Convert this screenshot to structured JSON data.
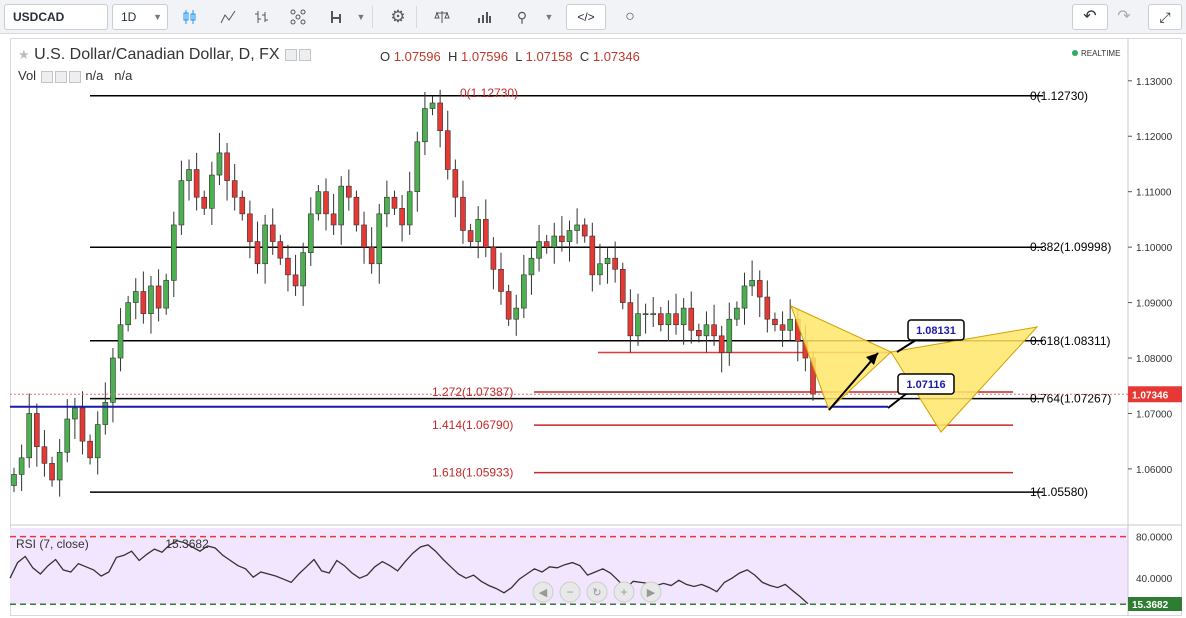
{
  "toolbar": {
    "symbol": "USDCAD",
    "interval": "1D"
  },
  "legend": {
    "title": "U.S. Dollar/Canadian Dollar, D, FX",
    "o_label": "O",
    "o": "1.07596",
    "h_label": "H",
    "h": "1.07596",
    "l_label": "L",
    "l": "1.07158",
    "c_label": "C",
    "c": "1.07346",
    "vol_label": "Vol",
    "vol_a": "n/a",
    "vol_b": "n/a",
    "realtime": "REALTIME"
  },
  "colors": {
    "up": "#4caf50",
    "down": "#e53935",
    "fib": "#000000",
    "ext": "#c62828",
    "blue_line": "#1a1aa6",
    "harmonic_fill": "#ffe66a",
    "rsi_bg": "#f2e6ff",
    "price_tag": "#e53935"
  },
  "chart_data": [
    {
      "type": "candlestick",
      "symbol": "USDCAD",
      "interval": "D",
      "y_axis": {
        "ticks": [
          "1.13000",
          "1.12000",
          "1.11000",
          "1.10000",
          "1.09000",
          "1.08000",
          "1.07000",
          "1.06000"
        ],
        "range": [
          1.0525,
          1.1335
        ]
      },
      "last_price": "1.07346",
      "price_path": [
        1.059,
        1.062,
        1.07,
        1.064,
        1.061,
        1.058,
        1.063,
        1.069,
        1.071,
        1.065,
        1.062,
        1.068,
        1.072,
        1.08,
        1.086,
        1.09,
        1.092,
        1.088,
        1.093,
        1.089,
        1.094,
        1.104,
        1.112,
        1.114,
        1.109,
        1.107,
        1.113,
        1.117,
        1.112,
        1.109,
        1.106,
        1.101,
        1.097,
        1.104,
        1.101,
        1.098,
        1.095,
        1.093,
        1.099,
        1.106,
        1.11,
        1.106,
        1.104,
        1.111,
        1.109,
        1.104,
        1.1,
        1.097,
        1.106,
        1.109,
        1.107,
        1.104,
        1.11,
        1.119,
        1.125,
        1.126,
        1.121,
        1.114,
        1.109,
        1.103,
        1.101,
        1.105,
        1.1,
        1.096,
        1.092,
        1.087,
        1.089,
        1.095,
        1.098,
        1.101,
        1.1,
        1.102,
        1.101,
        1.103,
        1.104,
        1.102,
        1.095,
        1.097,
        1.098,
        1.096,
        1.09,
        1.084,
        1.088,
        1.088,
        1.088,
        1.086,
        1.088,
        1.086,
        1.089,
        1.085,
        1.084,
        1.086,
        1.084,
        1.081,
        1.087,
        1.089,
        1.093,
        1.094,
        1.091,
        1.087,
        1.086,
        1.085,
        1.087,
        1.083,
        1.08,
        1.0735
      ],
      "fib_levels": [
        {
          "label": "0(1.12730)",
          "value": 1.1273
        },
        {
          "label": "0.382(1.09998)",
          "value": 1.09998
        },
        {
          "label": "0.618(1.08311)",
          "value": 1.08311
        },
        {
          "label": "0.764(1.07267)",
          "value": 1.07267
        },
        {
          "label": "1(1.05580)",
          "value": 1.0558
        }
      ],
      "fib_left_labels": [
        {
          "label": "0(1.12730)",
          "value": 1.1273
        }
      ],
      "extension_levels": [
        {
          "label": "1.272(1.07387)",
          "value": 1.07387
        },
        {
          "label": "1.414(1.06790)",
          "value": 1.0679
        },
        {
          "label": "1.618(1.05933)",
          "value": 1.05933
        }
      ],
      "annotations": [
        {
          "label": "1.08131",
          "value": 1.08131
        },
        {
          "label": "1.07116",
          "value": 1.07116
        }
      ]
    },
    {
      "type": "line",
      "title": "RSI (7, close)",
      "value": "15.3682",
      "y_axis": {
        "ticks": [
          "80.0000",
          "40.0000"
        ],
        "range": [
          8,
          92
        ]
      },
      "levels": [
        80,
        15
      ],
      "values": [
        40,
        55,
        61,
        50,
        44,
        52,
        58,
        48,
        46,
        54,
        51,
        48,
        42,
        46,
        60,
        62,
        66,
        57,
        63,
        68,
        65,
        72,
        76,
        74,
        70,
        66,
        71,
        69,
        62,
        57,
        52,
        49,
        41,
        46,
        44,
        42,
        39,
        36,
        44,
        51,
        58,
        47,
        45,
        57,
        52,
        45,
        40,
        43,
        51,
        56,
        52,
        47,
        56,
        64,
        70,
        72,
        66,
        58,
        51,
        44,
        40,
        43,
        37,
        33,
        30,
        26,
        31,
        39,
        44,
        49,
        46,
        51,
        50,
        53,
        55,
        52,
        43,
        46,
        49,
        45,
        38,
        30,
        37,
        36,
        35,
        33,
        35,
        33,
        38,
        34,
        32,
        34,
        31,
        27,
        36,
        40,
        45,
        48,
        43,
        36,
        33,
        31,
        34,
        28,
        22,
        15.4
      ]
    }
  ]
}
